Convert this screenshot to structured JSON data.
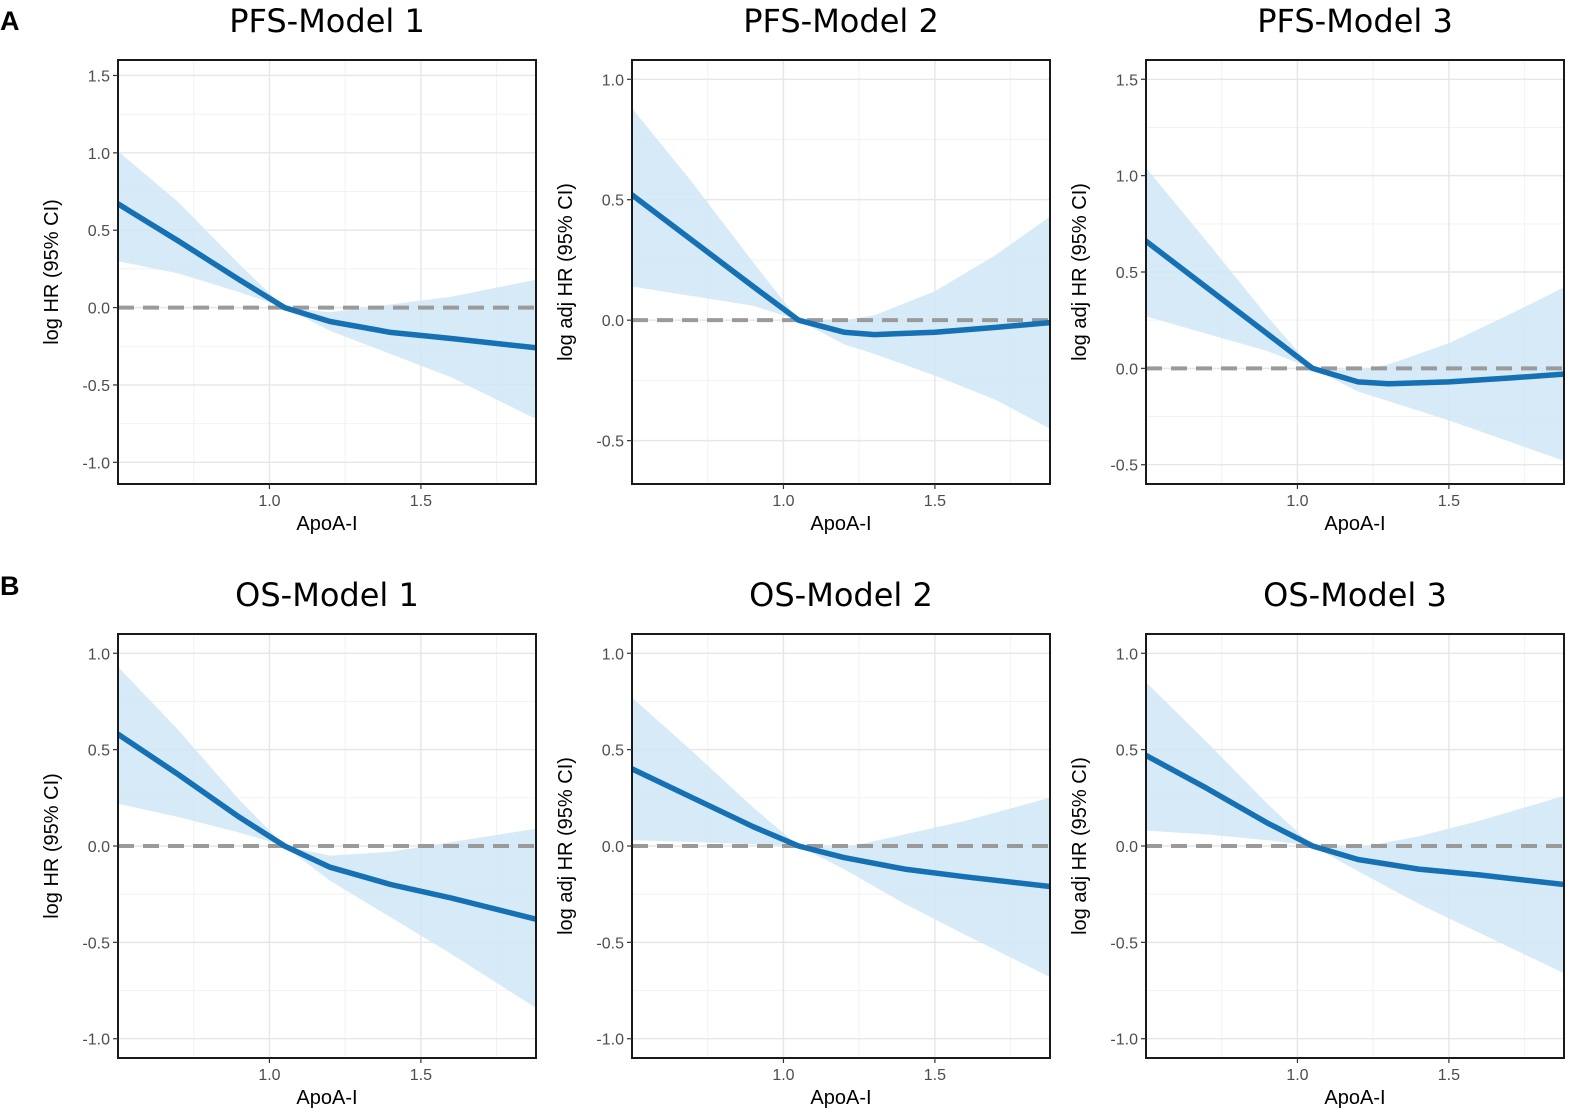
{
  "figure": {
    "panels": [
      {
        "letter": "A"
      },
      {
        "letter": "B"
      }
    ],
    "colors": {
      "line": "#1570b4",
      "ribbon": "#cfe6f6",
      "reference": "#9a9a9a",
      "grid_major": "#e6e6e6",
      "grid_minor": "#f2f2f2",
      "frame": "#1a1a1a"
    }
  },
  "chart_data": [
    {
      "type": "line",
      "title": "PFS-Model 1",
      "xlabel": "ApoA-I",
      "ylabel": "log HR (95% CI)",
      "xlim": [
        0.5,
        1.88
      ],
      "ylim": [
        -1.14,
        1.6
      ],
      "xticks": [
        1.0,
        1.5
      ],
      "xtick_labels": [
        "1.0",
        "1.5"
      ],
      "yticks": [
        -1.0,
        -0.5,
        0.0,
        0.5,
        1.0,
        1.5
      ],
      "ytick_labels": [
        "-1.0",
        "-0.5",
        "0.0",
        "0.5",
        "1.0",
        "1.5"
      ],
      "reference_y": 0,
      "series": [
        {
          "name": "estimate",
          "x": [
            0.5,
            0.7,
            0.9,
            1.05,
            1.2,
            1.4,
            1.6,
            1.88
          ],
          "y": [
            0.67,
            0.43,
            0.18,
            0.0,
            -0.09,
            -0.16,
            -0.2,
            -0.26
          ]
        },
        {
          "name": "ci_lower",
          "x": [
            0.5,
            0.7,
            0.9,
            1.05,
            1.2,
            1.4,
            1.6,
            1.88
          ],
          "y": [
            0.3,
            0.22,
            0.1,
            0.0,
            -0.15,
            -0.3,
            -0.45,
            -0.72
          ]
        },
        {
          "name": "ci_upper",
          "x": [
            0.5,
            0.7,
            0.9,
            1.05,
            1.2,
            1.4,
            1.6,
            1.88
          ],
          "y": [
            1.01,
            0.68,
            0.28,
            0.0,
            -0.03,
            0.02,
            0.07,
            0.18
          ]
        }
      ]
    },
    {
      "type": "line",
      "title": "PFS-Model 2",
      "xlabel": "ApoA-I",
      "ylabel": "log adj HR (95% CI)",
      "xlim": [
        0.5,
        1.88
      ],
      "ylim": [
        -0.68,
        1.08
      ],
      "xticks": [
        1.0,
        1.5
      ],
      "xtick_labels": [
        "1.0",
        "1.5"
      ],
      "yticks": [
        -0.5,
        0.0,
        0.5,
        1.0
      ],
      "ytick_labels": [
        "-0.5",
        "0.0",
        "0.5",
        "1.0"
      ],
      "reference_y": 0,
      "series": [
        {
          "name": "estimate",
          "x": [
            0.5,
            0.7,
            0.9,
            1.05,
            1.2,
            1.3,
            1.5,
            1.7,
            1.88
          ],
          "y": [
            0.52,
            0.33,
            0.14,
            0.0,
            -0.05,
            -0.06,
            -0.05,
            -0.03,
            -0.01
          ]
        },
        {
          "name": "ci_lower",
          "x": [
            0.5,
            0.7,
            0.9,
            1.05,
            1.2,
            1.3,
            1.5,
            1.7,
            1.88
          ],
          "y": [
            0.14,
            0.1,
            0.06,
            0.0,
            -0.1,
            -0.14,
            -0.23,
            -0.33,
            -0.45
          ]
        },
        {
          "name": "ci_upper",
          "x": [
            0.5,
            0.7,
            0.9,
            1.05,
            1.2,
            1.3,
            1.5,
            1.7,
            1.88
          ],
          "y": [
            0.88,
            0.57,
            0.24,
            0.0,
            0.0,
            0.02,
            0.12,
            0.27,
            0.43
          ]
        }
      ]
    },
    {
      "type": "line",
      "title": "PFS-Model 3",
      "xlabel": "ApoA-I",
      "ylabel": "log adj HR (95% CI)",
      "xlim": [
        0.5,
        1.88
      ],
      "ylim": [
        -0.6,
        1.6
      ],
      "xticks": [
        1.0,
        1.5
      ],
      "xtick_labels": [
        "1.0",
        "1.5"
      ],
      "yticks": [
        -0.5,
        0.0,
        0.5,
        1.0,
        1.5
      ],
      "ytick_labels": [
        "-0.5",
        "0.0",
        "0.5",
        "1.0",
        "1.5"
      ],
      "reference_y": 0,
      "series": [
        {
          "name": "estimate",
          "x": [
            0.5,
            0.7,
            0.9,
            1.05,
            1.2,
            1.3,
            1.5,
            1.7,
            1.88
          ],
          "y": [
            0.66,
            0.42,
            0.18,
            0.0,
            -0.07,
            -0.08,
            -0.07,
            -0.05,
            -0.03
          ]
        },
        {
          "name": "ci_lower",
          "x": [
            0.5,
            0.7,
            0.9,
            1.05,
            1.2,
            1.3,
            1.5,
            1.7,
            1.88
          ],
          "y": [
            0.27,
            0.18,
            0.09,
            0.0,
            -0.12,
            -0.17,
            -0.27,
            -0.38,
            -0.48
          ]
        },
        {
          "name": "ci_upper",
          "x": [
            0.5,
            0.7,
            0.9,
            1.05,
            1.2,
            1.3,
            1.5,
            1.7,
            1.88
          ],
          "y": [
            1.04,
            0.66,
            0.27,
            0.0,
            -0.01,
            0.02,
            0.13,
            0.28,
            0.42
          ]
        }
      ]
    },
    {
      "type": "line",
      "title": "OS-Model 1",
      "xlabel": "ApoA-I",
      "ylabel": "log HR (95% CI)",
      "xlim": [
        0.5,
        1.88
      ],
      "ylim": [
        -1.1,
        1.1
      ],
      "xticks": [
        1.0,
        1.5
      ],
      "xtick_labels": [
        "1.0",
        "1.5"
      ],
      "yticks": [
        -1.0,
        -0.5,
        0.0,
        0.5,
        1.0
      ],
      "ytick_labels": [
        "-1.0",
        "-0.5",
        "0.0",
        "0.5",
        "1.0"
      ],
      "reference_y": 0,
      "series": [
        {
          "name": "estimate",
          "x": [
            0.5,
            0.7,
            0.9,
            1.05,
            1.2,
            1.4,
            1.6,
            1.88
          ],
          "y": [
            0.58,
            0.37,
            0.15,
            0.0,
            -0.11,
            -0.2,
            -0.27,
            -0.38
          ]
        },
        {
          "name": "ci_lower",
          "x": [
            0.5,
            0.7,
            0.9,
            1.05,
            1.2,
            1.4,
            1.6,
            1.88
          ],
          "y": [
            0.22,
            0.15,
            0.07,
            0.0,
            -0.18,
            -0.37,
            -0.56,
            -0.84
          ]
        },
        {
          "name": "ci_upper",
          "x": [
            0.5,
            0.7,
            0.9,
            1.05,
            1.2,
            1.4,
            1.6,
            1.88
          ],
          "y": [
            0.93,
            0.6,
            0.24,
            0.0,
            -0.05,
            -0.03,
            0.02,
            0.09
          ]
        }
      ]
    },
    {
      "type": "line",
      "title": "OS-Model 2",
      "xlabel": "ApoA-I",
      "ylabel": "log adj HR (95% CI)",
      "xlim": [
        0.5,
        1.88
      ],
      "ylim": [
        -1.1,
        1.1
      ],
      "xticks": [
        1.0,
        1.5
      ],
      "xtick_labels": [
        "1.0",
        "1.5"
      ],
      "yticks": [
        -1.0,
        -0.5,
        0.0,
        0.5,
        1.0
      ],
      "ytick_labels": [
        "-1.0",
        "-0.5",
        "0.0",
        "0.5",
        "1.0"
      ],
      "reference_y": 0,
      "series": [
        {
          "name": "estimate",
          "x": [
            0.5,
            0.7,
            0.9,
            1.05,
            1.2,
            1.4,
            1.6,
            1.88
          ],
          "y": [
            0.4,
            0.25,
            0.1,
            0.0,
            -0.06,
            -0.12,
            -0.16,
            -0.21
          ]
        },
        {
          "name": "ci_lower",
          "x": [
            0.5,
            0.7,
            0.9,
            1.05,
            1.2,
            1.4,
            1.6,
            1.88
          ],
          "y": [
            0.03,
            0.02,
            0.01,
            0.0,
            -0.12,
            -0.3,
            -0.46,
            -0.68
          ]
        },
        {
          "name": "ci_upper",
          "x": [
            0.5,
            0.7,
            0.9,
            1.05,
            1.2,
            1.4,
            1.6,
            1.88
          ],
          "y": [
            0.77,
            0.49,
            0.2,
            0.0,
            -0.01,
            0.06,
            0.13,
            0.25
          ]
        }
      ]
    },
    {
      "type": "line",
      "title": "OS-Model 3",
      "xlabel": "ApoA-I",
      "ylabel": "log adj HR (95% CI)",
      "xlim": [
        0.5,
        1.88
      ],
      "ylim": [
        -1.1,
        1.1
      ],
      "xticks": [
        1.0,
        1.5
      ],
      "xtick_labels": [
        "1.0",
        "1.5"
      ],
      "yticks": [
        -1.0,
        -0.5,
        0.0,
        0.5,
        1.0
      ],
      "ytick_labels": [
        "-1.0",
        "-0.5",
        "0.0",
        "0.5",
        "1.0"
      ],
      "reference_y": 0,
      "series": [
        {
          "name": "estimate",
          "x": [
            0.5,
            0.7,
            0.9,
            1.05,
            1.2,
            1.4,
            1.6,
            1.88
          ],
          "y": [
            0.47,
            0.3,
            0.12,
            0.0,
            -0.07,
            -0.12,
            -0.15,
            -0.2
          ]
        },
        {
          "name": "ci_lower",
          "x": [
            0.5,
            0.7,
            0.9,
            1.05,
            1.2,
            1.4,
            1.6,
            1.88
          ],
          "y": [
            0.08,
            0.06,
            0.03,
            0.0,
            -0.13,
            -0.3,
            -0.45,
            -0.66
          ]
        },
        {
          "name": "ci_upper",
          "x": [
            0.5,
            0.7,
            0.9,
            1.05,
            1.2,
            1.4,
            1.6,
            1.88
          ],
          "y": [
            0.85,
            0.54,
            0.22,
            0.0,
            -0.01,
            0.05,
            0.13,
            0.26
          ]
        }
      ]
    }
  ]
}
